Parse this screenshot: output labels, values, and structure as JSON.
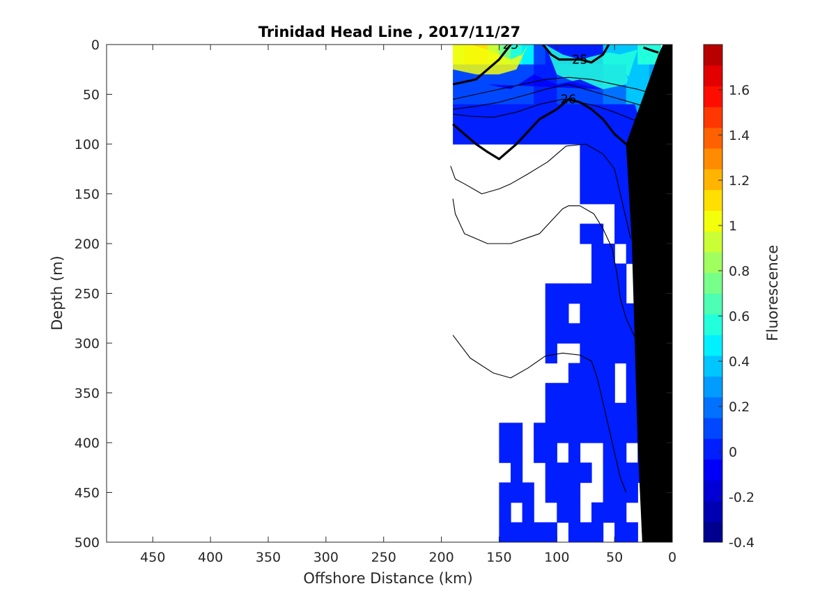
{
  "chart_data": {
    "type": "heatmap",
    "title": "Trinidad Head Line , 2017/11/27",
    "xlabel": "Offshore Distance (km)",
    "ylabel": "Depth (m)",
    "colorbar_label": "Fluorescence",
    "xlim": [
      490,
      0
    ],
    "ylim": [
      0,
      500
    ],
    "x_reversed": true,
    "y_reversed": true,
    "x_ticks": [
      450,
      400,
      350,
      300,
      250,
      200,
      150,
      100,
      50,
      0
    ],
    "y_ticks": [
      0,
      50,
      100,
      150,
      200,
      250,
      300,
      350,
      400,
      450,
      500
    ],
    "colorbar_range": [
      -0.4,
      1.8
    ],
    "colorbar_ticks": [
      -0.4,
      -0.2,
      0,
      0.2,
      0.4,
      0.6,
      0.8,
      1,
      1.2,
      1.4,
      1.6
    ],
    "colorbar_tick_labels": [
      "-0.4",
      "-0.2",
      "0",
      "0.2",
      "0.4",
      "0.6",
      "0.8",
      "1",
      "1.2",
      "1.4",
      "1.6"
    ],
    "colormap_steps": [
      "#00008f",
      "#0000b3",
      "#0000d6",
      "#0000fa",
      "#001efe",
      "#0048ff",
      "#0072ff",
      "#009cff",
      "#00c6ff",
      "#00f0ff",
      "#22ffdd",
      "#4cffb3",
      "#76ff89",
      "#a0ff5f",
      "#caff35",
      "#f4ff0b",
      "#ffdf00",
      "#ffb500",
      "#ff8b00",
      "#ff6100",
      "#ff3700",
      "#ff0d00",
      "#e20000",
      "#b80000"
    ],
    "grid": false,
    "fluorescence_bands": [
      {
        "level": 1.0,
        "x": [
          190,
          175,
          160,
          150,
          140,
          130,
          125,
          135,
          150,
          170,
          190
        ],
        "y": [
          0,
          0,
          5,
          10,
          15,
          10,
          0,
          25,
          30,
          30,
          25
        ]
      },
      {
        "level": 0.6,
        "x": [
          110,
          95,
          80,
          70,
          55,
          45,
          30,
          40,
          60,
          80,
          100
        ],
        "y": [
          0,
          10,
          15,
          12,
          8,
          10,
          5,
          40,
          45,
          40,
          30
        ]
      },
      {
        "level": 0.4,
        "x": [
          40,
          30,
          20,
          10,
          12,
          18,
          30
        ],
        "y": [
          30,
          40,
          50,
          60,
          75,
          90,
          70
        ]
      },
      {
        "level": -0.1,
        "x": [
          160,
          140,
          120,
          100,
          80,
          60
        ],
        "y": [
          40,
          45,
          30,
          40,
          35,
          45
        ]
      }
    ],
    "sigma_contours": [
      {
        "label": "25",
        "bold": true,
        "x": [
          190,
          170,
          150,
          140,
          135,
          130
        ],
        "y": [
          40,
          35,
          15,
          0,
          -2,
          -2
        ]
      },
      {
        "label": "25",
        "bold": true,
        "x": [
          112,
          105,
          98,
          90,
          80,
          70,
          60,
          55
        ],
        "y": [
          0,
          10,
          15,
          15,
          15,
          18,
          10,
          0
        ]
      },
      {
        "label": "",
        "bold": true,
        "x": [
          25,
          20,
          15,
          12
        ],
        "y": [
          3,
          5,
          7,
          8
        ]
      },
      {
        "label": "26",
        "bold": true,
        "x": [
          190,
          180,
          170,
          160,
          150,
          135,
          115,
          100,
          90,
          80,
          70,
          60,
          50,
          40,
          30,
          20,
          12
        ],
        "y": [
          80,
          90,
          100,
          108,
          115,
          100,
          75,
          65,
          55,
          58,
          65,
          75,
          90,
          100,
          112,
          120,
          118
        ]
      },
      {
        "label": "",
        "bold": false,
        "x": [
          190,
          170,
          150,
          130,
          110,
          90,
          70,
          50,
          30,
          15,
          10
        ],
        "y": [
          55,
          50,
          45,
          40,
          35,
          33,
          35,
          40,
          45,
          50,
          50
        ]
      },
      {
        "label": "",
        "bold": false,
        "x": [
          190,
          170,
          150,
          125,
          110,
          90,
          75,
          60,
          45,
          30,
          18,
          12
        ],
        "y": [
          65,
          62,
          58,
          50,
          45,
          40,
          45,
          50,
          55,
          60,
          65,
          68
        ]
      },
      {
        "label": "",
        "bold": false,
        "x": [
          190,
          175,
          155,
          135,
          115,
          95,
          80,
          65,
          50,
          35,
          20,
          12
        ],
        "y": [
          70,
          72,
          73,
          68,
          60,
          55,
          58,
          62,
          68,
          75,
          80,
          82
        ]
      },
      {
        "label": "",
        "bold": false,
        "x": [
          192,
          188,
          180,
          165,
          150,
          140,
          125,
          108,
          92,
          75,
          60,
          50,
          45,
          40,
          36
        ],
        "y": [
          122,
          135,
          140,
          150,
          145,
          140,
          130,
          118,
          102,
          100,
          110,
          125,
          150,
          175,
          195
        ]
      },
      {
        "label": "",
        "bold": false,
        "x": [
          190,
          188,
          180,
          160,
          140,
          115,
          103,
          95,
          90,
          80,
          68,
          60,
          52,
          48,
          45,
          40,
          30,
          22
        ],
        "y": [
          155,
          170,
          190,
          200,
          200,
          190,
          175,
          165,
          162,
          162,
          170,
          185,
          205,
          230,
          255,
          275,
          300,
          320
        ]
      },
      {
        "label": "",
        "bold": false,
        "x": [
          190,
          175,
          155,
          140,
          125,
          110,
          95,
          80,
          70,
          65,
          60,
          55,
          50,
          45,
          40
        ],
        "y": [
          292,
          315,
          330,
          335,
          325,
          313,
          310,
          312,
          318,
          335,
          360,
          385,
          410,
          435,
          450
        ]
      }
    ]
  }
}
